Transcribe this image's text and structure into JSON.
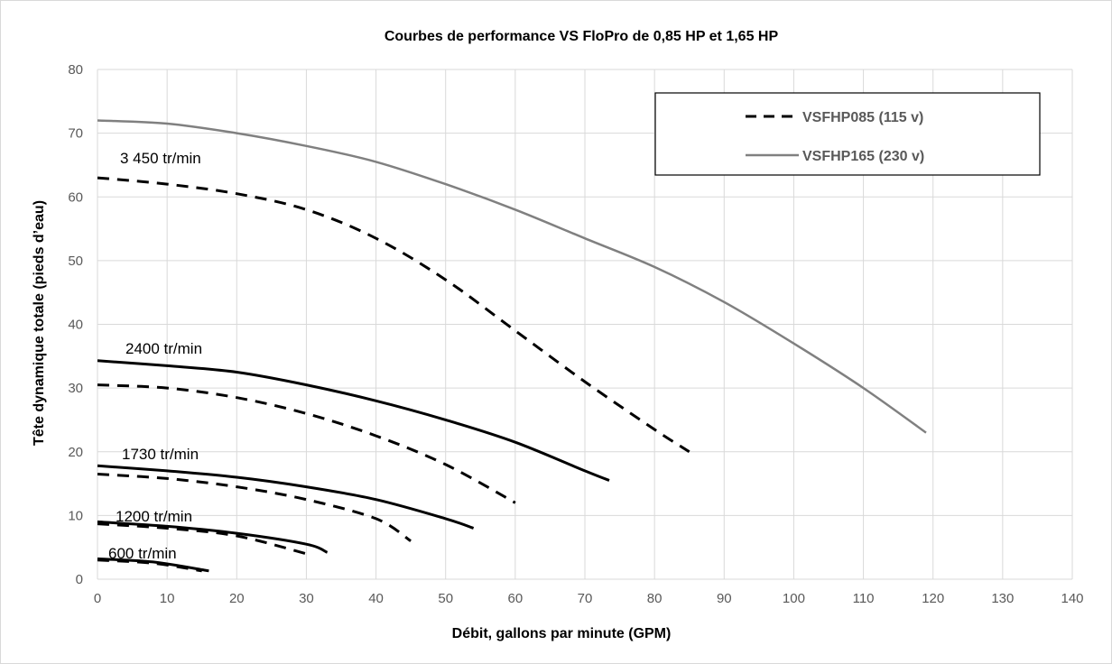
{
  "chart_data": {
    "type": "line",
    "title": "Courbes de performance VS FloPro de 0,85 HP et 1,65 HP",
    "xlabel": "Débit, gallons par minute (GPM)",
    "ylabel": "Tête dynamique totale (pieds d’eau)",
    "xlim": [
      0,
      140
    ],
    "ylim": [
      0,
      80
    ],
    "x_ticks": [
      "0",
      "10",
      "20",
      "30",
      "40",
      "50",
      "60",
      "70",
      "80",
      "90",
      "100",
      "110",
      "120",
      "130",
      "140"
    ],
    "y_ticks": [
      "0",
      "10",
      "20",
      "30",
      "40",
      "50",
      "60",
      "70",
      "80"
    ],
    "grid": true,
    "legend_position": "top-right",
    "legend": [
      {
        "name": "VSFHP085 (115 v)",
        "style": "dashed",
        "color": "#000000"
      },
      {
        "name": "VSFHP165 (230 v)",
        "style": "solid",
        "color": "#808080"
      }
    ],
    "speed_labels": [
      "3 450 tr/min",
      "2400 tr/min",
      "1730 tr/min",
      "1200 tr/min",
      "600 tr/min"
    ],
    "series": [
      {
        "name": "VSFHP085 (115 v)",
        "rpm": "3 450 tr/min",
        "style": "dashed",
        "color": "#000000",
        "points": [
          [
            0,
            63
          ],
          [
            10,
            62
          ],
          [
            20,
            60.5
          ],
          [
            30,
            58
          ],
          [
            40,
            53.5
          ],
          [
            50,
            47
          ],
          [
            60,
            39
          ],
          [
            70,
            31
          ],
          [
            80,
            23.5
          ],
          [
            85,
            20
          ]
        ]
      },
      {
        "name": "VSFHP165 (230 v)",
        "style": "solid",
        "color": "#808080",
        "points": [
          [
            0,
            72
          ],
          [
            10,
            71.5
          ],
          [
            20,
            70
          ],
          [
            30,
            68
          ],
          [
            40,
            65.5
          ],
          [
            50,
            62
          ],
          [
            60,
            58
          ],
          [
            70,
            53.5
          ],
          [
            80,
            49
          ],
          [
            90,
            43.5
          ],
          [
            100,
            37
          ],
          [
            110,
            30
          ],
          [
            119,
            23
          ]
        ]
      },
      {
        "name": "VSFHP165 (230 v)",
        "rpm": "2400 tr/min",
        "style": "solid",
        "color": "#000000",
        "points": [
          [
            0,
            34.3
          ],
          [
            10,
            33.5
          ],
          [
            20,
            32.5
          ],
          [
            30,
            30.5
          ],
          [
            40,
            28
          ],
          [
            50,
            25
          ],
          [
            60,
            21.5
          ],
          [
            70,
            17
          ],
          [
            73.5,
            15.5
          ]
        ]
      },
      {
        "name": "VSFHP085 (115 v)",
        "rpm": "2400 tr/min",
        "style": "dashed",
        "color": "#000000",
        "points": [
          [
            0,
            30.5
          ],
          [
            10,
            30
          ],
          [
            20,
            28.5
          ],
          [
            30,
            26
          ],
          [
            40,
            22.5
          ],
          [
            50,
            18
          ],
          [
            60,
            12
          ]
        ]
      },
      {
        "name": "VSFHP165 (230 v)",
        "rpm": "1730 tr/min",
        "style": "solid",
        "color": "#000000",
        "points": [
          [
            0,
            17.8
          ],
          [
            10,
            17
          ],
          [
            20,
            16
          ],
          [
            30,
            14.5
          ],
          [
            40,
            12.5
          ],
          [
            50,
            9.5
          ],
          [
            54,
            8
          ]
        ]
      },
      {
        "name": "VSFHP085 (115 v)",
        "rpm": "1730 tr/min",
        "style": "dashed",
        "color": "#000000",
        "points": [
          [
            0,
            16.5
          ],
          [
            10,
            15.8
          ],
          [
            20,
            14.5
          ],
          [
            30,
            12.5
          ],
          [
            40,
            9.5
          ],
          [
            45,
            6
          ]
        ]
      },
      {
        "name": "VSFHP165 (230 v)",
        "rpm": "1200 tr/min",
        "style": "solid",
        "color": "#000000",
        "points": [
          [
            0,
            9
          ],
          [
            10,
            8.3
          ],
          [
            20,
            7.2
          ],
          [
            30,
            5.5
          ],
          [
            33,
            4.2
          ]
        ]
      },
      {
        "name": "VSFHP085 (115 v)",
        "rpm": "1200 tr/min",
        "style": "dashed",
        "color": "#000000",
        "points": [
          [
            0,
            8.7
          ],
          [
            10,
            8
          ],
          [
            20,
            6.8
          ],
          [
            30,
            4
          ]
        ]
      },
      {
        "name": "VSFHP165 (230 v)",
        "rpm": "600 tr/min",
        "style": "solid",
        "color": "#000000",
        "points": [
          [
            0,
            3.2
          ],
          [
            8,
            2.7
          ],
          [
            16,
            1.3
          ]
        ]
      },
      {
        "name": "VSFHP085 (115 v)",
        "rpm": "600 tr/min",
        "style": "dashed",
        "color": "#000000",
        "points": [
          [
            0,
            3
          ],
          [
            8,
            2.5
          ],
          [
            15,
            1.3
          ]
        ]
      }
    ]
  }
}
